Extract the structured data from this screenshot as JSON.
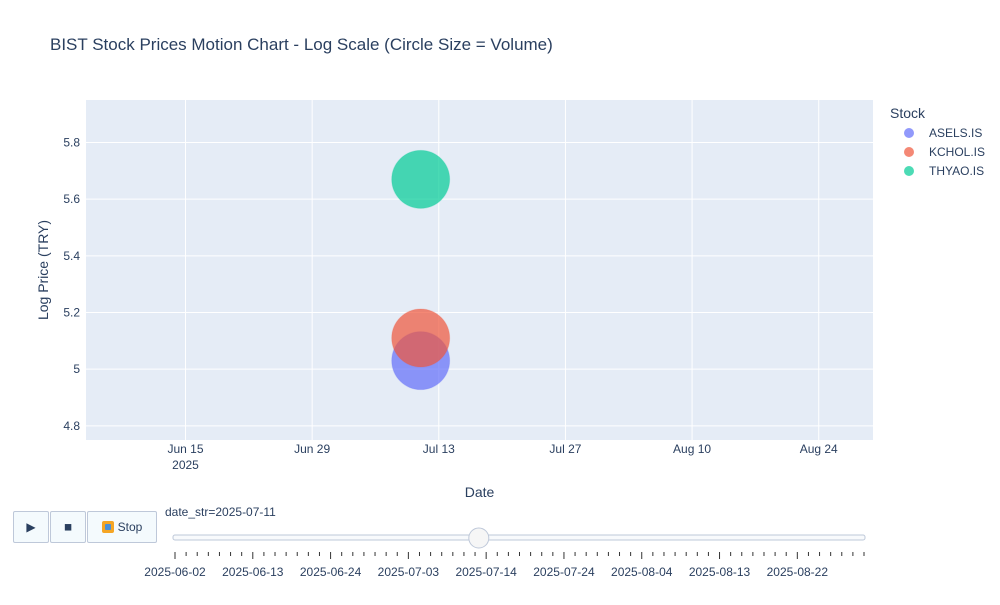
{
  "chart_data": {
    "type": "scatter",
    "title": "BIST Stock Prices Motion Chart - Log Scale (Circle Size = Volume)",
    "xlabel": "Date",
    "ylabel": "Log Price (TRY)",
    "x_type": "date",
    "xlim": [
      "2025-06-04",
      "2025-08-30"
    ],
    "ylim": [
      4.75,
      5.95
    ],
    "x_ticks": [
      {
        "date": "2025-06-15",
        "label": "Jun 15",
        "sub": "2025"
      },
      {
        "date": "2025-06-29",
        "label": "Jun 29",
        "sub": ""
      },
      {
        "date": "2025-07-13",
        "label": "Jul 13",
        "sub": ""
      },
      {
        "date": "2025-07-27",
        "label": "Jul 27",
        "sub": ""
      },
      {
        "date": "2025-08-10",
        "label": "Aug 10",
        "sub": ""
      },
      {
        "date": "2025-08-24",
        "label": "Aug 24",
        "sub": ""
      }
    ],
    "y_ticks": [
      4.8,
      5,
      5.2,
      5.4,
      5.6,
      5.8
    ],
    "y_tick_labels": [
      "4.8",
      "5",
      "5.2",
      "5.4",
      "5.6",
      "5.8"
    ],
    "grid": true,
    "legend": {
      "title": "Stock",
      "position": "right"
    },
    "series": [
      {
        "name": "ASELS.IS",
        "color": "#636efa",
        "x": [
          "2025-07-11"
        ],
        "y": [
          5.03
        ],
        "size": "large"
      },
      {
        "name": "KCHOL.IS",
        "color": "#ef553b",
        "x": [
          "2025-07-11"
        ],
        "y": [
          5.11
        ],
        "size": "large"
      },
      {
        "name": "THYAO.IS",
        "color": "#00cc96",
        "x": [
          "2025-07-11"
        ],
        "y": [
          5.67
        ],
        "size": "large"
      }
    ]
  },
  "slider": {
    "current_label": "date_str=2025-07-11",
    "current_value": "2025-07-11",
    "value_fraction": 0.4,
    "step_count": 63,
    "tick_labels": [
      "2025-06-02",
      "2025-06-13",
      "2025-06-24",
      "2025-07-03",
      "2025-07-14",
      "2025-07-24",
      "2025-08-04",
      "2025-08-13",
      "2025-08-22"
    ]
  },
  "controls": {
    "play_icon": "play-icon",
    "play_glyph": "▶",
    "pause_icon": "pause-icon",
    "pause_glyph": "◼",
    "stop_icon": "stop-icon",
    "stop_label": "Stop"
  },
  "colors": {
    "plot_bg": "#e5ecf6",
    "grid": "#ffffff",
    "text": "#2a3f5f",
    "slider_border": "#bec8d9"
  }
}
